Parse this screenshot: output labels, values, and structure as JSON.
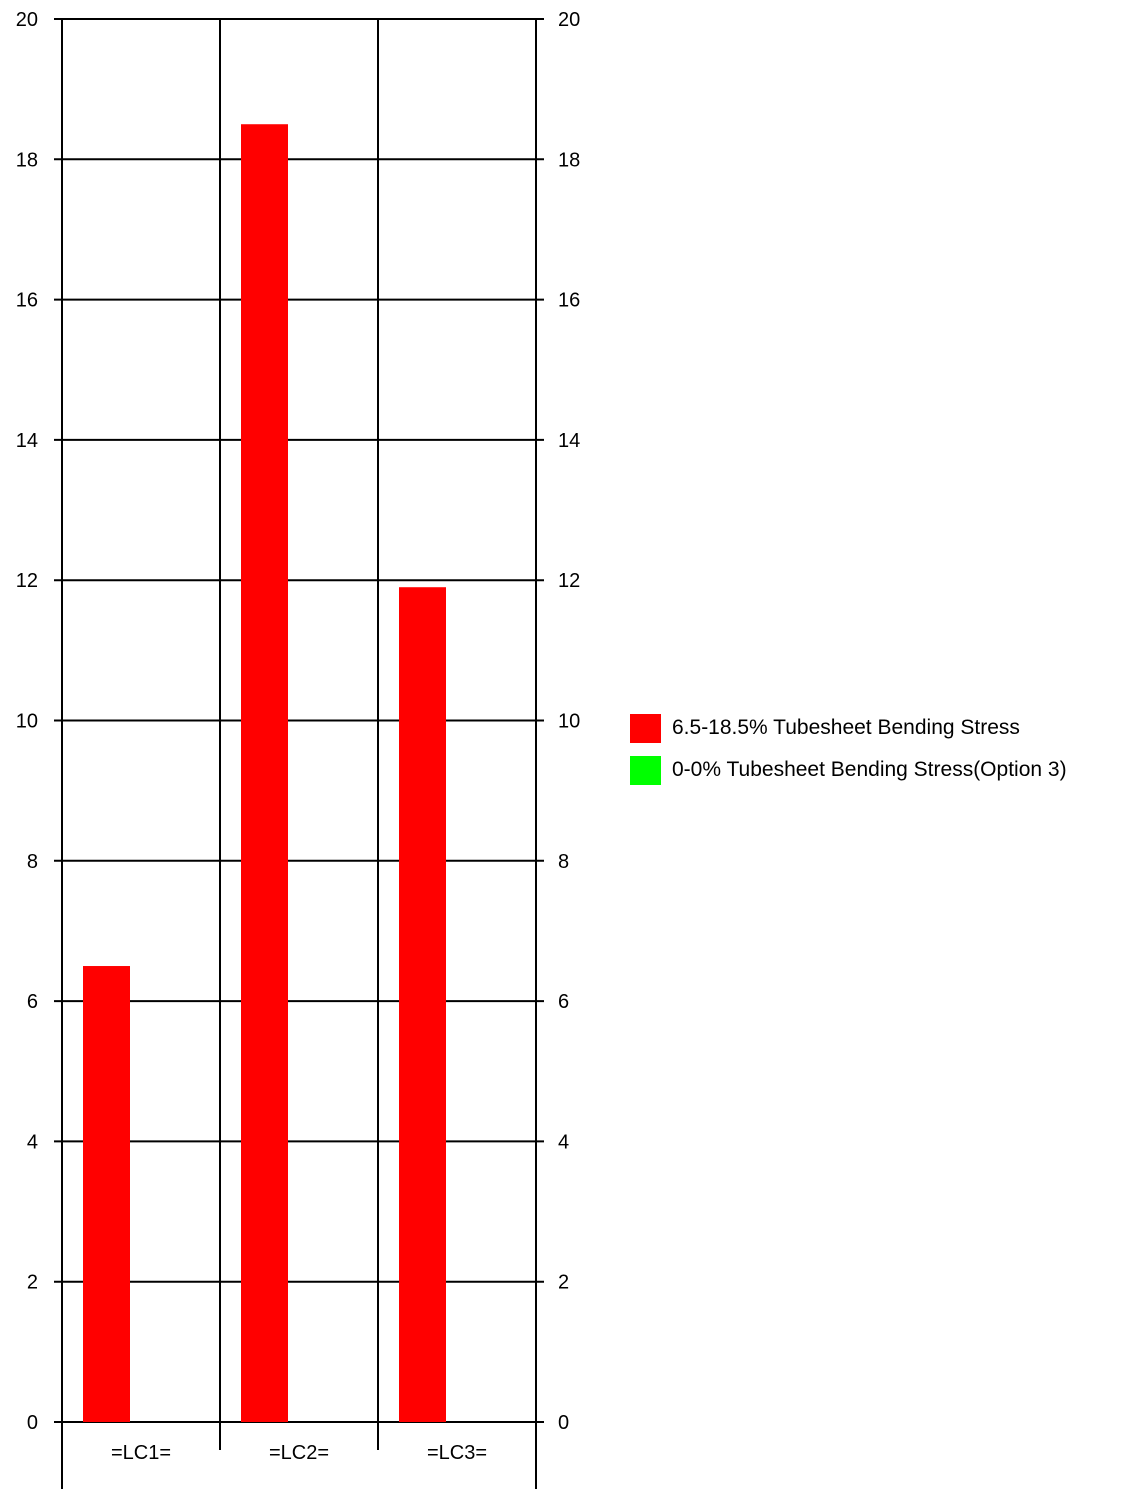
{
  "chart_data": {
    "type": "bar",
    "title": "",
    "xlabel": "",
    "ylabel": "",
    "categories": [
      "=LC1=",
      "=LC2=",
      "=LC3="
    ],
    "series": [
      {
        "name": "6.5-18.5% Tubesheet Bending Stress",
        "color": "#ff0000",
        "values": [
          6.5,
          18.5,
          11.9
        ]
      },
      {
        "name": "0-0% Tubesheet Bending Stress(Option 3)",
        "color": "#00ff00",
        "values": [
          0,
          0,
          0
        ]
      }
    ],
    "ylim": [
      0,
      20
    ],
    "yticks": [
      "0",
      "2",
      "4",
      "6",
      "8",
      "10",
      "12",
      "14",
      "16",
      "18",
      "20"
    ],
    "y_axis_right_mirror": true,
    "grid": true,
    "legend_position": "right"
  }
}
